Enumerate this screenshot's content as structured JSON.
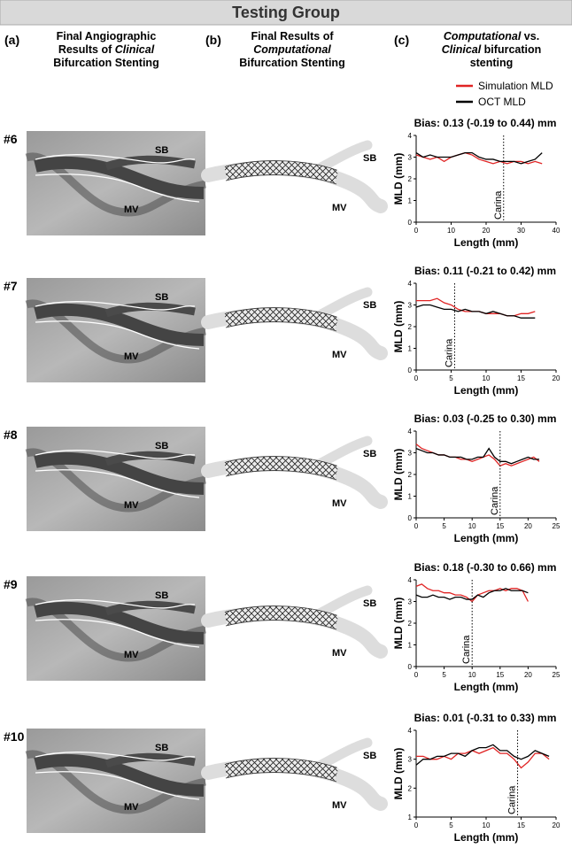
{
  "header": {
    "title": "Testing Group"
  },
  "columns": [
    {
      "label": "(a)",
      "lines": [
        [
          {
            "text": "Final Angiographic"
          }
        ],
        [
          {
            "text": "Results of "
          },
          {
            "text": "Clinical",
            "italic": true
          }
        ],
        [
          {
            "text": "Bifurcation Stenting"
          }
        ]
      ]
    },
    {
      "label": "(b)",
      "lines": [
        [
          {
            "text": "Final Results of"
          }
        ],
        [
          {
            "text": "Computational",
            "italic": true
          }
        ],
        [
          {
            "text": "Bifurcation Stenting"
          }
        ]
      ]
    },
    {
      "label": "(c)",
      "lines": [
        [
          {
            "text": "Computational",
            "italic": true
          },
          {
            "text": " vs."
          }
        ],
        [
          {
            "text": "Clinical",
            "italic": true
          },
          {
            "text": " bifurcation"
          }
        ],
        [
          {
            "text": "stenting"
          }
        ]
      ]
    }
  ],
  "legend": [
    {
      "name": "Simulation MLD",
      "color": "#e02424"
    },
    {
      "name": "OCT MLD",
      "color": "#000000"
    }
  ],
  "rows": [
    {
      "label": "#6",
      "angio_sb": "SB",
      "angio_mv": "MV",
      "stent_sb": "SB",
      "stent_mv": "MV"
    },
    {
      "label": "#7",
      "angio_sb": "SB",
      "angio_mv": "MV",
      "stent_sb": "SB",
      "stent_mv": "MV"
    },
    {
      "label": "#8",
      "angio_sb": "SB",
      "angio_mv": "MV",
      "stent_sb": "SB",
      "stent_mv": "MV"
    },
    {
      "label": "#9",
      "angio_sb": "SB",
      "angio_mv": "MV",
      "stent_sb": "SB",
      "stent_mv": "MV"
    },
    {
      "label": "#10",
      "angio_sb": "SB",
      "angio_mv": "MV",
      "stent_sb": "SB",
      "stent_mv": "MV"
    }
  ],
  "chart_data": [
    {
      "type": "line",
      "title": "Bias: 0.13 (-0.19 to 0.44) mm",
      "x_label": "Length (mm)",
      "y_label": "MLD (mm)",
      "x": [
        0,
        2,
        4,
        6,
        8,
        10,
        12,
        14,
        16,
        18,
        20,
        22,
        24,
        26,
        28,
        30,
        32,
        34,
        36
      ],
      "series": [
        {
          "values": [
            3.1,
            3.0,
            2.9,
            3.0,
            2.8,
            3.0,
            3.1,
            3.2,
            3.1,
            2.9,
            2.8,
            2.7,
            2.8,
            2.7,
            2.8,
            2.8,
            2.7,
            2.8,
            2.7
          ]
        },
        {
          "values": [
            3.2,
            3.0,
            3.1,
            3.0,
            3.0,
            3.0,
            3.1,
            3.2,
            3.2,
            3.0,
            2.9,
            2.9,
            2.8,
            2.8,
            2.8,
            2.7,
            2.8,
            2.9,
            3.2
          ]
        }
      ],
      "annotations": [
        {
          "text": "Carina",
          "x": 25
        }
      ],
      "xlim": [
        0,
        40
      ],
      "xticks": [
        0,
        10,
        20,
        30,
        40
      ],
      "ylim": [
        0,
        4
      ],
      "yticks": [
        0,
        1,
        2,
        3,
        4
      ]
    },
    {
      "type": "line",
      "title": "Bias: 0.11 (-0.21 to 0.42) mm",
      "x_label": "Length (mm)",
      "y_label": "MLD (mm)",
      "x": [
        0,
        1,
        2,
        3,
        4,
        5,
        6,
        7,
        8,
        9,
        10,
        11,
        12,
        13,
        14,
        15,
        16,
        17
      ],
      "series": [
        {
          "values": [
            3.2,
            3.2,
            3.2,
            3.3,
            3.1,
            3.0,
            2.8,
            2.7,
            2.7,
            2.7,
            2.6,
            2.6,
            2.6,
            2.5,
            2.5,
            2.6,
            2.6,
            2.7
          ]
        },
        {
          "values": [
            2.9,
            3.0,
            3.0,
            2.9,
            2.8,
            2.8,
            2.7,
            2.8,
            2.7,
            2.7,
            2.6,
            2.7,
            2.6,
            2.5,
            2.5,
            2.4,
            2.4,
            2.4
          ]
        }
      ],
      "annotations": [
        {
          "text": "Carina",
          "x": 5.5
        }
      ],
      "xlim": [
        0,
        20
      ],
      "xticks": [
        0,
        5,
        10,
        15,
        20
      ],
      "ylim": [
        0,
        4
      ],
      "yticks": [
        0,
        1,
        2,
        3,
        4
      ]
    },
    {
      "type": "line",
      "title": "Bias: 0.03 (-0.25 to 0.30) mm",
      "x_label": "Length (mm)",
      "y_label": "MLD (mm)",
      "x": [
        0,
        1,
        2,
        3,
        4,
        5,
        6,
        7,
        8,
        9,
        10,
        11,
        12,
        13,
        14,
        15,
        16,
        17,
        18,
        19,
        20,
        21,
        22
      ],
      "series": [
        {
          "values": [
            3.4,
            3.2,
            3.1,
            3.0,
            2.9,
            2.9,
            2.8,
            2.8,
            2.7,
            2.7,
            2.6,
            2.7,
            2.8,
            2.9,
            2.7,
            2.4,
            2.5,
            2.4,
            2.5,
            2.6,
            2.7,
            2.8,
            2.6
          ]
        },
        {
          "values": [
            3.2,
            3.1,
            3.0,
            3.0,
            2.9,
            2.9,
            2.8,
            2.8,
            2.8,
            2.7,
            2.7,
            2.8,
            2.8,
            3.2,
            2.8,
            2.6,
            2.6,
            2.5,
            2.6,
            2.7,
            2.8,
            2.7,
            2.7
          ]
        }
      ],
      "annotations": [
        {
          "text": "Carina",
          "x": 15
        }
      ],
      "xlim": [
        0,
        25
      ],
      "xticks": [
        0,
        5,
        10,
        15,
        20,
        25
      ],
      "ylim": [
        0,
        4
      ],
      "yticks": [
        0,
        1,
        2,
        3,
        4
      ]
    },
    {
      "type": "line",
      "title": "Bias: 0.18 (-0.30 to 0.66) mm",
      "x_label": "Length (mm)",
      "y_label": "MLD (mm)",
      "x": [
        0,
        1,
        2,
        3,
        4,
        5,
        6,
        7,
        8,
        9,
        10,
        11,
        12,
        13,
        14,
        15,
        16,
        17,
        18,
        19,
        20
      ],
      "series": [
        {
          "values": [
            3.7,
            3.8,
            3.6,
            3.5,
            3.5,
            3.4,
            3.4,
            3.3,
            3.3,
            3.2,
            3.0,
            3.3,
            3.4,
            3.5,
            3.5,
            3.6,
            3.5,
            3.6,
            3.6,
            3.5,
            3.0
          ]
        },
        {
          "values": [
            3.3,
            3.2,
            3.2,
            3.3,
            3.2,
            3.2,
            3.1,
            3.2,
            3.2,
            3.1,
            3.1,
            3.3,
            3.2,
            3.4,
            3.5,
            3.5,
            3.6,
            3.5,
            3.5,
            3.5,
            3.4
          ]
        }
      ],
      "annotations": [
        {
          "text": "Carina",
          "x": 10
        }
      ],
      "xlim": [
        0,
        25
      ],
      "xticks": [
        0,
        5,
        10,
        15,
        20,
        25
      ],
      "ylim": [
        0,
        4
      ],
      "yticks": [
        0,
        1,
        2,
        3,
        4
      ]
    },
    {
      "type": "line",
      "title": "Bias: 0.01 (-0.31 to 0.33) mm",
      "x_label": "Length (mm)",
      "y_label": "MLD (mm)",
      "x": [
        0,
        1,
        2,
        3,
        4,
        5,
        6,
        7,
        8,
        9,
        10,
        11,
        12,
        13,
        14,
        15,
        16,
        17,
        18,
        19
      ],
      "series": [
        {
          "values": [
            3.1,
            3.1,
            3.0,
            3.0,
            3.1,
            3.0,
            3.2,
            3.2,
            3.3,
            3.2,
            3.3,
            3.4,
            3.2,
            3.2,
            3.0,
            2.7,
            2.9,
            3.2,
            3.2,
            3.0
          ]
        },
        {
          "values": [
            2.8,
            3.0,
            3.0,
            3.1,
            3.1,
            3.2,
            3.2,
            3.1,
            3.3,
            3.4,
            3.4,
            3.5,
            3.3,
            3.3,
            3.1,
            3.0,
            3.1,
            3.3,
            3.2,
            3.1
          ]
        }
      ],
      "annotations": [
        {
          "text": "Carina",
          "x": 14.5
        }
      ],
      "xlim": [
        0,
        20
      ],
      "xticks": [
        0,
        5,
        10,
        15,
        20
      ],
      "ylim": [
        1,
        4
      ],
      "yticks": [
        1,
        2,
        3,
        4
      ]
    }
  ]
}
